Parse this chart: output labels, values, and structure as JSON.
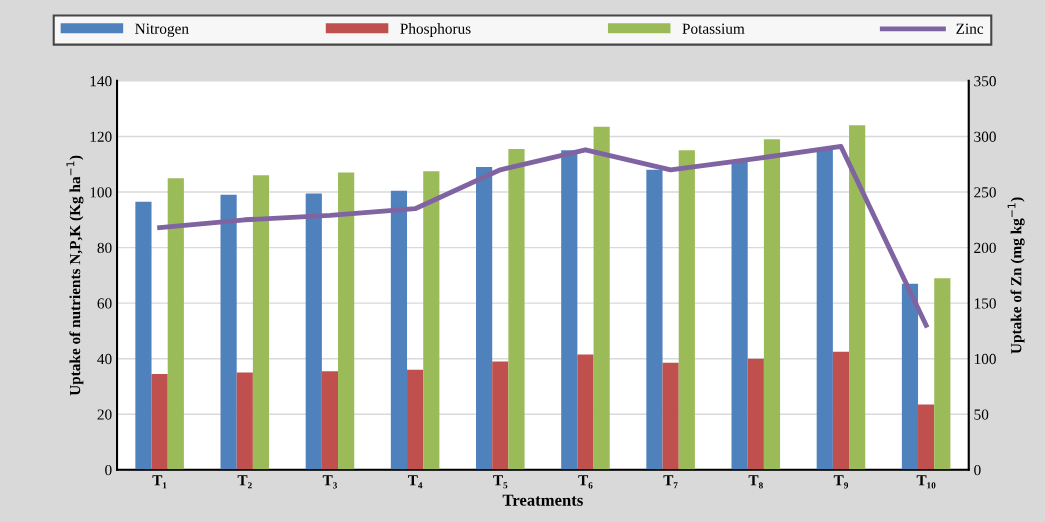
{
  "chart_data": {
    "type": "bar",
    "xlabel": "Treatments",
    "ylabel": "Uptake of nutrients N,P,K (Kg ha$^{−1}$)",
    "y2label": "Uptake of Zn (mg kg$^{−1}$)",
    "categories": [
      "T₁",
      "T₂",
      "T₃",
      "T₄",
      "T₅",
      "T₆",
      "T₇",
      "T₈",
      "T₉",
      "T₁₀"
    ],
    "series": [
      {
        "name": "Nitrogen",
        "color": "#4f81bd",
        "values": [
          96.5,
          99,
          99.5,
          100.5,
          109,
          115,
          108,
          111,
          115.5,
          67
        ]
      },
      {
        "name": "Phosphorus",
        "color": "#c0504d",
        "values": [
          34.5,
          35,
          35.5,
          36,
          39,
          41.5,
          38.5,
          40,
          42.5,
          23.5
        ]
      },
      {
        "name": "Potassium",
        "color": "#9bbb59",
        "values": [
          105,
          106,
          107,
          107.5,
          115.5,
          123.5,
          115,
          119,
          124,
          69
        ]
      },
      {
        "name": "Zinc",
        "color": "#8064a2",
        "type": "line",
        "axis": "y2",
        "values": [
          218,
          225,
          229,
          235,
          270,
          288,
          270,
          280,
          291,
          130
        ]
      }
    ],
    "ylim": [
      0,
      140
    ],
    "yticks": [
      0,
      20,
      40,
      60,
      80,
      100,
      120,
      140
    ],
    "y2lim": [
      0,
      350
    ],
    "y2ticks": [
      0,
      50,
      100,
      150,
      200,
      250,
      300,
      350
    ],
    "grid": "y",
    "legend": "top",
    "marker": "none"
  }
}
